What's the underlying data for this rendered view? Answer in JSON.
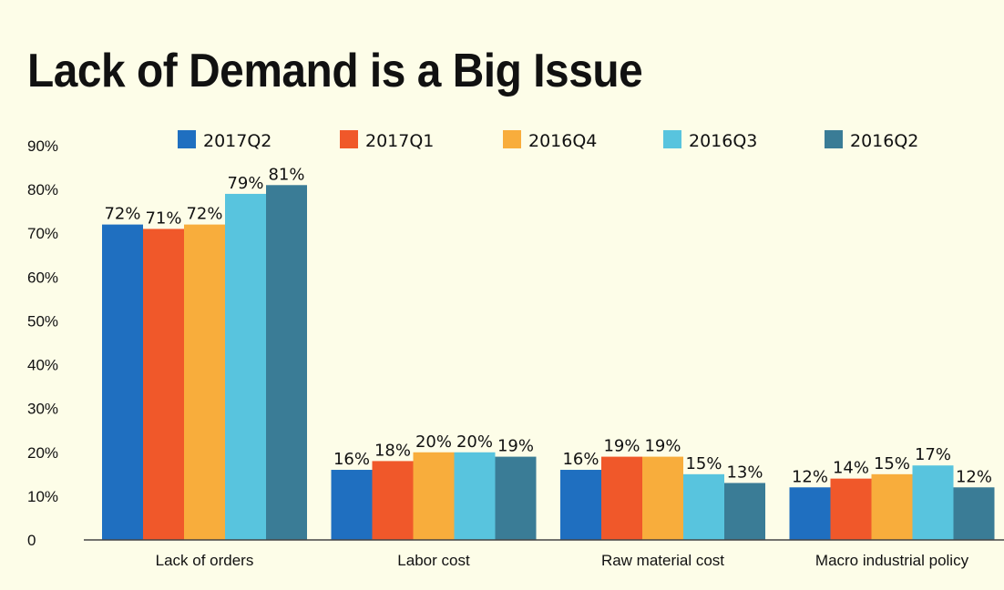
{
  "chart_data": {
    "type": "bar",
    "title": "Lack of Demand is a Big Issue",
    "categories": [
      "Lack of orders",
      "Labor cost",
      "Raw material cost",
      "Macro industrial policy"
    ],
    "series": [
      {
        "name": "2017Q2",
        "color": "#1f6fc0",
        "values": [
          72,
          16,
          16,
          12
        ]
      },
      {
        "name": "2017Q1",
        "color": "#f0582a",
        "values": [
          71,
          18,
          19,
          14
        ]
      },
      {
        "name": "2016Q4",
        "color": "#f8ad3c",
        "values": [
          72,
          20,
          19,
          15
        ]
      },
      {
        "name": "2016Q3",
        "color": "#58c4de",
        "values": [
          79,
          20,
          15,
          17
        ]
      },
      {
        "name": "2016Q2",
        "color": "#3a7c96",
        "values": [
          81,
          19,
          13,
          12
        ]
      }
    ],
    "yticks": [
      "0",
      "10%",
      "20%",
      "30%",
      "40%",
      "50%",
      "60%",
      "70%",
      "80%",
      "90%"
    ],
    "ylim": [
      0,
      90
    ],
    "value_suffix": "%",
    "legend_position": "top",
    "grid": false
  }
}
